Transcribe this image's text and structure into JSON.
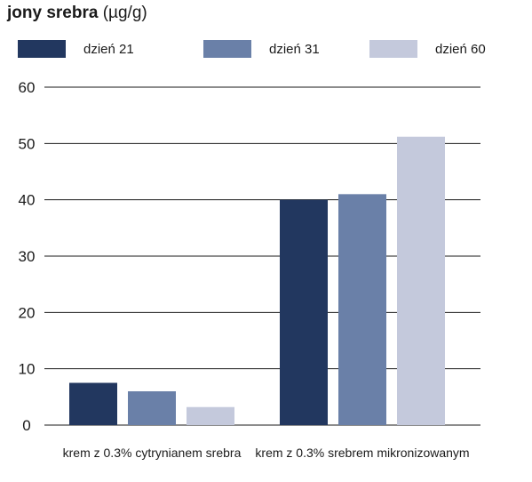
{
  "chart_data": {
    "type": "bar",
    "title": "jony srebra",
    "unit": "(µg/g)",
    "categories": [
      "krem z 0.3% cytrynianem srebra",
      "krem z 0.3% srebrem mikronizowanym"
    ],
    "series": [
      {
        "name": "dzień 21",
        "color": "#22375f",
        "values": [
          7.5,
          40
        ]
      },
      {
        "name": "dzień 31",
        "color": "#6a80a8",
        "values": [
          6,
          41
        ]
      },
      {
        "name": "dzień 60",
        "color": "#c4c9dc",
        "values": [
          3.2,
          51.2
        ]
      }
    ],
    "yticks": [
      0,
      10,
      20,
      30,
      40,
      50,
      60
    ],
    "ylim": [
      0,
      60
    ],
    "grid": true,
    "legend_position": "top"
  }
}
